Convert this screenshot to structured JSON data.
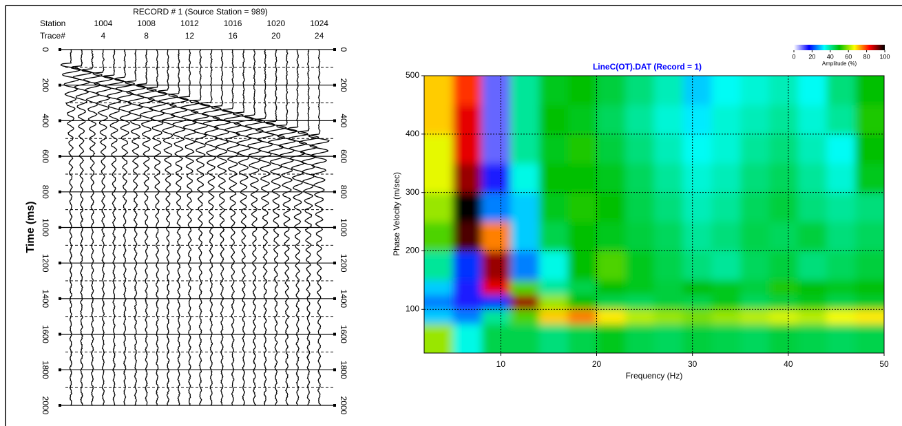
{
  "chart_data": [
    {
      "type": "seismogram",
      "title": "RECORD # 1 (Source Station = 989)",
      "station_label": "Station",
      "trace_label": "Trace#",
      "ylabel": "Time (ms)",
      "xlim": [
        0.5,
        25.3
      ],
      "xticks": [
        4,
        8,
        12,
        16,
        20,
        24
      ],
      "station_ticks": [
        1004,
        1008,
        1012,
        1016,
        1020,
        1024
      ],
      "ylim": [
        0,
        2000
      ],
      "yticks": [
        0,
        200,
        400,
        600,
        800,
        1000,
        1200,
        1400,
        1600,
        1800,
        2000
      ],
      "yminor": [
        100,
        300,
        500,
        700,
        900,
        1100,
        1300,
        1500,
        1700,
        1900
      ],
      "arrivals": [
        100,
        115,
        130,
        150,
        165,
        180,
        200,
        215,
        235,
        250,
        270,
        285,
        305,
        320,
        340,
        355,
        375,
        390,
        410,
        425,
        445,
        460,
        480,
        500
      ],
      "color": "#000000"
    },
    {
      "type": "heatmap",
      "title": "LineC(OT).DAT (Record = 1)",
      "xlabel": "Frequency (Hz)",
      "ylabel": "Phase Velocity (m/sec)",
      "xlim": [
        2,
        50
      ],
      "xticks": [
        10,
        20,
        30,
        40,
        50
      ],
      "ylim": [
        25,
        500
      ],
      "yticks": [
        100,
        200,
        300,
        400,
        500
      ],
      "xbins": [
        2,
        5,
        8,
        11,
        14,
        17,
        20,
        23,
        26,
        29,
        32,
        35,
        38,
        41,
        44,
        47,
        50
      ],
      "ybins": [
        25,
        75,
        100,
        125,
        150,
        200,
        250,
        300,
        350,
        400,
        450,
        500
      ],
      "z": [
        [
          60,
          35,
          45,
          45,
          42,
          45,
          48,
          45,
          44,
          46,
          45,
          44,
          46,
          45,
          44,
          45
        ],
        [
          30,
          25,
          40,
          55,
          70,
          75,
          68,
          62,
          60,
          58,
          60,
          62,
          64,
          62,
          66,
          68
        ],
        [
          25,
          15,
          20,
          90,
          60,
          50,
          45,
          44,
          46,
          45,
          48,
          44,
          46,
          48,
          45,
          47
        ],
        [
          30,
          15,
          85,
          55,
          40,
          45,
          50,
          48,
          46,
          50,
          48,
          46,
          52,
          50,
          48,
          50
        ],
        [
          40,
          20,
          90,
          25,
          35,
          50,
          55,
          48,
          45,
          42,
          40,
          44,
          46,
          42,
          44,
          46
        ],
        [
          55,
          95,
          75,
          30,
          45,
          50,
          48,
          46,
          44,
          40,
          42,
          45,
          44,
          46,
          42,
          44
        ],
        [
          60,
          100,
          25,
          30,
          48,
          52,
          50,
          45,
          42,
          38,
          40,
          44,
          46,
          42,
          40,
          42
        ],
        [
          65,
          90,
          15,
          35,
          50,
          50,
          48,
          44,
          40,
          36,
          38,
          42,
          44,
          40,
          36,
          48
        ],
        [
          65,
          85,
          10,
          40,
          48,
          52,
          46,
          42,
          38,
          34,
          36,
          40,
          42,
          38,
          34,
          50
        ],
        [
          70,
          85,
          10,
          40,
          50,
          48,
          44,
          40,
          36,
          32,
          36,
          38,
          40,
          36,
          40,
          52
        ],
        [
          70,
          80,
          10,
          40,
          48,
          50,
          46,
          42,
          38,
          30,
          34,
          36,
          38,
          34,
          42,
          50
        ]
      ],
      "colormap": [
        "#ffffff",
        "#0000ff",
        "#00ffff",
        "#00c000",
        "#ffff00",
        "#ff0000",
        "#000000"
      ],
      "clim": [
        0,
        100
      ],
      "colorbar_ticks": [
        0,
        20,
        40,
        60,
        80,
        100
      ],
      "colorbar_label": "Amplitude (%)",
      "grid": true
    }
  ]
}
